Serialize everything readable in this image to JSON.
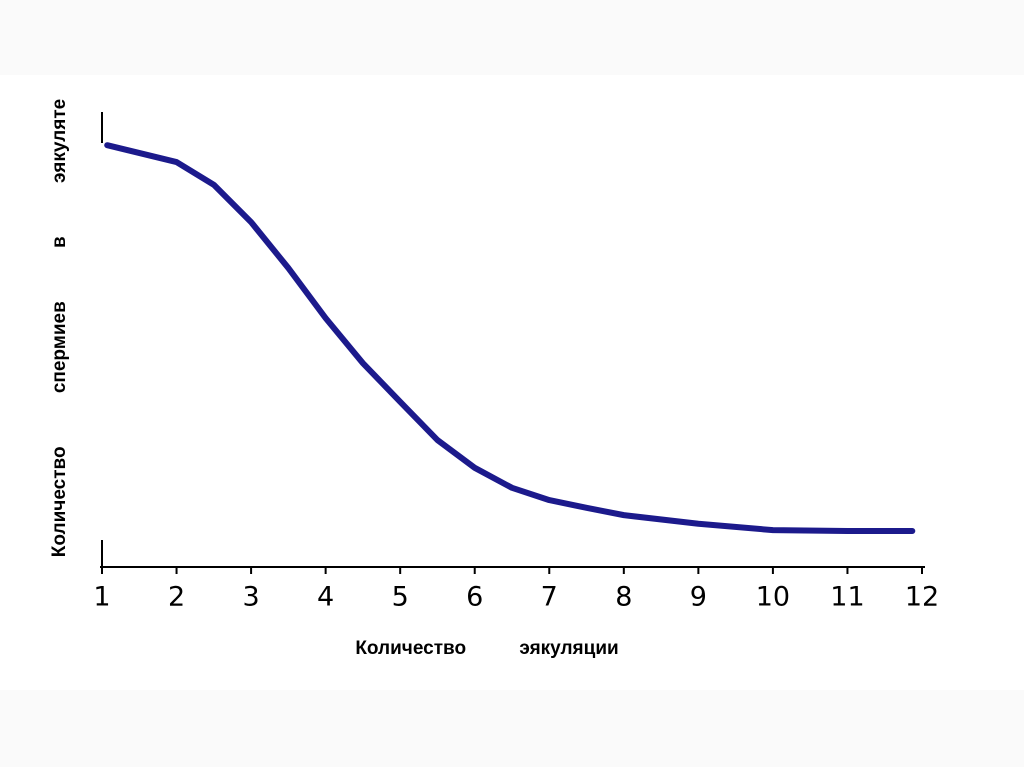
{
  "chart_data": {
    "type": "line",
    "y_label": "Количество спермиев в эякуляте",
    "x_label": "Количество эякуляции",
    "x": [
      1.07,
      2,
      2.5,
      3,
      3.5,
      4,
      4.5,
      5,
      5.5,
      6,
      6.5,
      7,
      7.5,
      8,
      9,
      10,
      11,
      11.87
    ],
    "series": [
      {
        "color": "#1c1a8c",
        "values": [
          92.7,
          89.0,
          84.0,
          75.8,
          65.7,
          54.7,
          44.8,
          36.3,
          27.9,
          21.8,
          17.4,
          14.7,
          13.0,
          11.4,
          9.5,
          8.1,
          7.9,
          7.9
        ]
      }
    ],
    "xlim": [
      1,
      12
    ],
    "xticks": [
      1,
      2,
      3,
      4,
      5,
      6,
      7,
      8,
      9,
      10,
      11,
      12
    ],
    "ylim": [
      0,
      100
    ]
  }
}
